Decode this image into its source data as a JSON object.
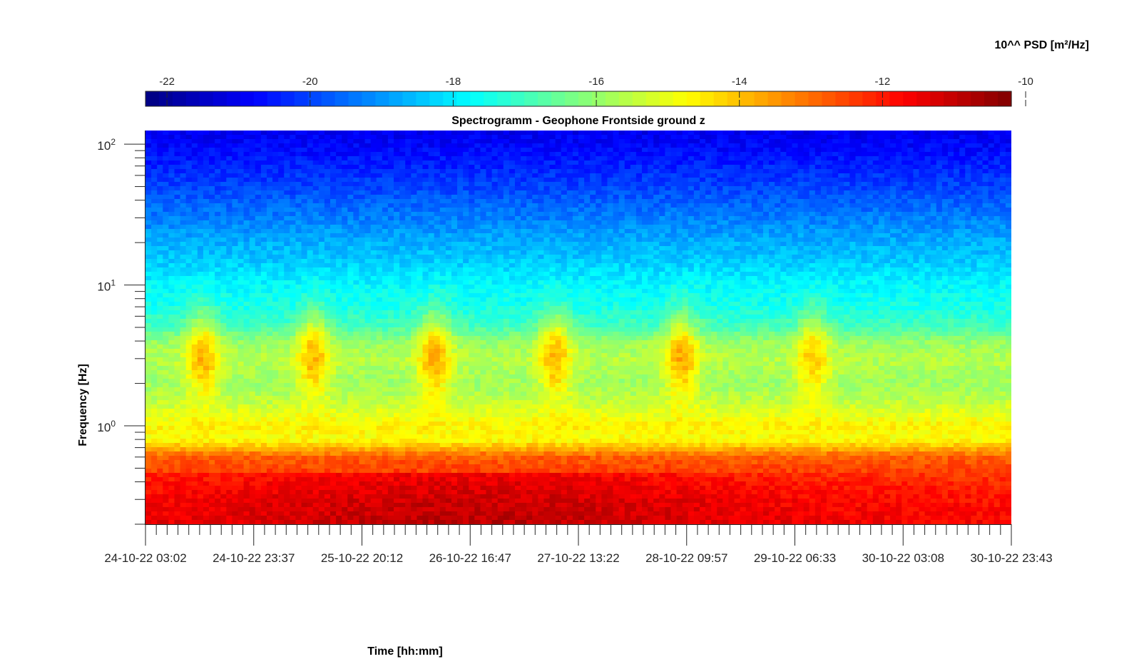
{
  "chart_data": {
    "type": "heatmap",
    "title": "Spectrogramm - Geophone Frontside ground z",
    "xlabel": "Time [hh:mm]",
    "ylabel": "Frequency [Hz]",
    "colorbar": {
      "label": "10^^ PSD [m²/Hz]",
      "ticks": [
        -22,
        -20,
        -18,
        -16,
        -14,
        -12,
        -10
      ],
      "range": [
        -22.3,
        -10.2
      ],
      "colormap": "jet",
      "location": "top"
    },
    "x_ticks": [
      "24-10-22 03:02",
      "24-10-22 23:37",
      "25-10-22 20:12",
      "26-10-22 16:47",
      "27-10-22 13:22",
      "28-10-22 09:57",
      "29-10-22 06:33",
      "30-10-22 03:08",
      "30-10-22 23:43"
    ],
    "x_range": [
      "24-10-22 03:02",
      "30-10-22 23:43"
    ],
    "y_scale": "log",
    "y_range": [
      0.2,
      125
    ],
    "y_ticks": [
      {
        "base": "10",
        "exp": "2",
        "value": 100
      },
      {
        "base": "10",
        "exp": "1",
        "value": 10
      },
      {
        "base": "10",
        "exp": "0",
        "value": 1
      }
    ],
    "y_profile": {
      "frequency_hz": [
        125,
        100,
        50,
        30,
        20,
        15,
        10,
        7,
        5,
        4,
        3,
        2,
        1.5,
        1.0,
        0.8,
        0.6,
        0.4,
        0.3,
        0.2
      ],
      "log10_psd": [
        -21.0,
        -20.8,
        -20.0,
        -19.3,
        -18.7,
        -18.4,
        -17.8,
        -17.5,
        -16.9,
        -16.0,
        -15.6,
        -15.9,
        -15.5,
        -14.6,
        -14.8,
        -12.8,
        -12.2,
        -11.9,
        -11.7
      ]
    },
    "events": [
      {
        "time": "24-10-22 14:00",
        "frequency_hz": 3,
        "log10_psd": -13.5
      },
      {
        "time": "25-10-22 11:00",
        "frequency_hz": 3,
        "log10_psd": -13.5
      },
      {
        "time": "26-10-22 10:00",
        "frequency_hz": 3,
        "log10_psd": -13.3
      },
      {
        "time": "27-10-22 09:00",
        "frequency_hz": 3,
        "log10_psd": -13.5
      },
      {
        "time": "28-10-22 09:00",
        "frequency_hz": 3,
        "log10_psd": -13.3
      },
      {
        "time": "29-10-22 10:00",
        "frequency_hz": 3,
        "log10_psd": -13.8
      }
    ],
    "grid": false
  }
}
